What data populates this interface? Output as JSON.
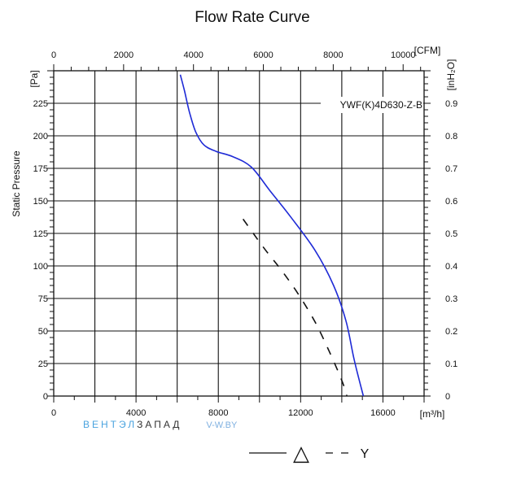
{
  "chart_data": {
    "type": "line",
    "title": "Flow Rate Curve",
    "ylabel": "Static Pressure",
    "y_unit": "[Pa]",
    "y2_unit": "[inH₂O]",
    "x_unit": "[m³/h]",
    "x2_unit": "[CFM]",
    "xlim": [
      0,
      18000
    ],
    "ylim": [
      0,
      250
    ],
    "x2lim": [
      0,
      10600
    ],
    "y2lim": [
      0,
      1.0
    ],
    "x_ticks": [
      "0",
      "4000",
      "8000",
      "12000",
      "16000"
    ],
    "x2_ticks": [
      "0",
      "2000",
      "4000",
      "6000",
      "8000",
      "10000"
    ],
    "y_ticks": [
      "0",
      "25",
      "50",
      "75",
      "100",
      "125",
      "150",
      "175",
      "200",
      "225"
    ],
    "y2_ticks": [
      "0",
      "0.1",
      "0.2",
      "0.3",
      "0.4",
      "0.5",
      "0.6",
      "0.7",
      "0.8",
      "0.9"
    ],
    "grid": true,
    "annotation": "YWF(K)4D630-Z-B",
    "series": [
      {
        "color": "#1f2bd6",
        "style": "solid",
        "x": [
          6150,
          6350,
          6600,
          6900,
          7300,
          7900,
          8700,
          9600,
          10500,
          11500,
          12700,
          13600,
          14200,
          14600,
          15050
        ],
        "y": [
          247,
          235,
          218,
          203,
          193,
          188,
          184,
          176,
          158,
          138,
          112,
          85,
          58,
          28,
          0
        ]
      },
      {
        "color": "#111111",
        "style": "dashed",
        "x": [
          9200,
          9700,
          10300,
          11100,
          11900,
          12700,
          13400,
          14000,
          14250
        ],
        "y": [
          136,
          125,
          112,
          96,
          78,
          57,
          34,
          12,
          0
        ]
      }
    ]
  },
  "legend": {
    "delta_symbol": "△",
    "y_symbol": "Y"
  },
  "watermark": {
    "part1": "ВЕНТЭЛ",
    "part2": "ЗАПАД",
    "site": "V-W.BY"
  }
}
